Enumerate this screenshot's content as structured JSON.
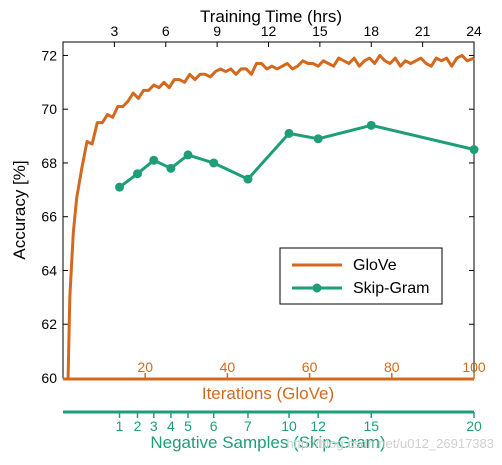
{
  "colors": {
    "glove": "#d4691e",
    "skipgram": "#1e9e78",
    "axis": "#000000",
    "watermark": "#cfcfcf"
  },
  "watermark": "http://blog.csdn.net/u012_26917383",
  "chart_data": {
    "type": "line",
    "ylabel": "Accuracy [%]",
    "ylim": [
      60,
      72.5
    ],
    "yticks": [
      60,
      62,
      64,
      66,
      68,
      70,
      72
    ],
    "grid": false,
    "legend_position": "center-right",
    "top_axis": {
      "label": "Training Time (hrs)",
      "range": [
        0,
        24
      ],
      "ticks": [
        3,
        6,
        9,
        12,
        15,
        18,
        21,
        24
      ]
    },
    "glove_axis": {
      "label": "Iterations (GloVe)",
      "range": [
        0,
        100
      ],
      "ticks": [
        20,
        40,
        60,
        80,
        100
      ]
    },
    "skipgram_axis": {
      "label": "Negative Samples (Skip-Gram)",
      "ticks": [
        1,
        2,
        3,
        4,
        5,
        6,
        7,
        10,
        12,
        15,
        20
      ],
      "tick_hours": [
        3.3,
        4.35,
        5.3,
        6.3,
        7.3,
        8.8,
        10.8,
        13.2,
        14.9,
        18.0,
        24.0
      ]
    },
    "series": [
      {
        "name": "GloVe",
        "x_hours": [
          0.3,
          0.4,
          0.6,
          0.8,
          1.1,
          1.4,
          1.7,
          2.0,
          2.3,
          2.6,
          2.9,
          3.2,
          3.5,
          3.8,
          4.1,
          4.4,
          4.7,
          5.0,
          5.3,
          5.6,
          5.9,
          6.2,
          6.5,
          6.8,
          7.1,
          7.4,
          7.7,
          8.0,
          8.3,
          8.6,
          8.9,
          9.2,
          9.5,
          9.8,
          10.1,
          10.4,
          10.7,
          11.0,
          11.3,
          11.6,
          11.9,
          12.2,
          12.5,
          12.8,
          13.1,
          13.4,
          13.7,
          14.0,
          14.3,
          14.6,
          14.9,
          15.2,
          15.5,
          15.8,
          16.1,
          16.4,
          16.7,
          17.0,
          17.3,
          17.6,
          17.9,
          18.2,
          18.5,
          18.8,
          19.1,
          19.4,
          19.7,
          20.0,
          20.3,
          20.6,
          20.9,
          21.2,
          21.5,
          21.8,
          22.1,
          22.4,
          22.7,
          23.0,
          23.3,
          23.6,
          24.0
        ],
        "y": [
          60.0,
          63.0,
          65.4,
          66.7,
          67.8,
          68.8,
          68.7,
          69.5,
          69.5,
          69.8,
          69.7,
          70.1,
          70.1,
          70.3,
          70.6,
          70.4,
          70.7,
          70.7,
          70.9,
          70.8,
          71.0,
          70.8,
          71.1,
          71.1,
          71.0,
          71.3,
          71.1,
          71.3,
          71.3,
          71.2,
          71.4,
          71.5,
          71.4,
          71.5,
          71.3,
          71.5,
          71.5,
          71.3,
          71.7,
          71.7,
          71.5,
          71.6,
          71.5,
          71.6,
          71.7,
          71.5,
          71.6,
          71.8,
          71.7,
          71.7,
          71.6,
          71.8,
          71.7,
          71.6,
          71.9,
          71.8,
          71.7,
          71.9,
          71.6,
          71.8,
          71.9,
          71.7,
          72.0,
          71.8,
          71.7,
          71.9,
          71.6,
          71.8,
          71.7,
          71.8,
          71.9,
          71.7,
          71.6,
          71.9,
          71.8,
          71.9,
          71.6,
          71.9,
          72.0,
          71.8,
          71.9
        ]
      },
      {
        "name": "Skip-Gram",
        "x_samples": [
          1,
          2,
          3,
          4,
          5,
          6,
          7,
          10,
          12,
          15,
          20
        ],
        "y": [
          67.1,
          67.6,
          68.1,
          67.8,
          68.3,
          68.0,
          67.4,
          69.1,
          68.9,
          69.4,
          68.5
        ]
      }
    ]
  }
}
